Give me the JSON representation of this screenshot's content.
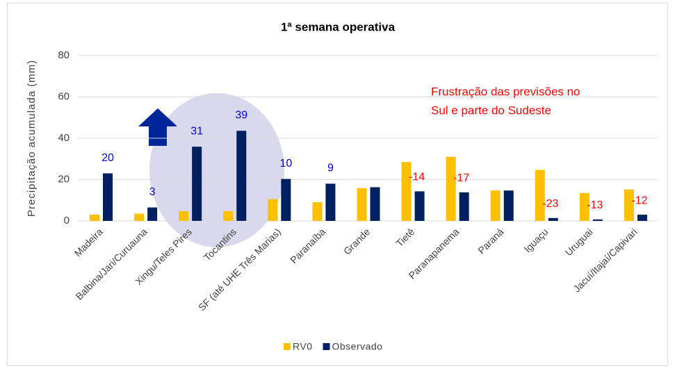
{
  "chart_data": {
    "type": "bar",
    "title": "1ª semana operativa",
    "ylabel": "Precipitação acumulada (mm)",
    "categories": [
      "Madeira",
      "Balbina/Jari/Curuauna",
      "Xingu/Teles Pires",
      "Tocantins",
      "SF (até UHE Três Marias)",
      "Paranaíba",
      "Grande",
      "Tietê",
      "Paranapanema",
      "Paraná",
      "Iguaçu",
      "Uruguai",
      "Jacuí/Itajaí/Capivari"
    ],
    "series": [
      {
        "name": "RV0",
        "color": "#ffc000",
        "values": [
          3,
          3.5,
          4.7,
          4.7,
          10.5,
          9,
          15.8,
          28.5,
          31,
          14.7,
          24.7,
          13.5,
          15.2
        ]
      },
      {
        "name": "Observado",
        "color": "#002060",
        "values": [
          23,
          6.5,
          35.9,
          43.6,
          20.3,
          18,
          16.3,
          14.3,
          13.8,
          14.7,
          1.4,
          0.7,
          3
        ]
      }
    ],
    "differences": [
      20,
      3,
      31,
      39,
      10,
      9,
      null,
      -14,
      -17,
      null,
      -23,
      -13,
      -12
    ],
    "annotation": [
      "Frustração das previsões no",
      "Sul e parte do Sudeste"
    ],
    "ylim": [
      0,
      80
    ],
    "yticks": [
      0,
      20,
      40,
      60,
      80
    ],
    "grid": true,
    "legend": "bottom"
  }
}
